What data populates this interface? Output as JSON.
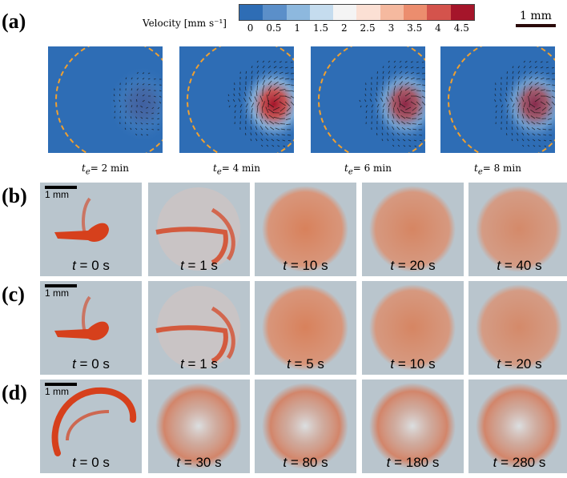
{
  "panels": {
    "a": "(a)",
    "b": "(b)",
    "c": "(c)",
    "d": "(d)"
  },
  "colorbar": {
    "title": "Velocity [mm s⁻¹]",
    "ticks": [
      "0",
      "0.5",
      "1",
      "1.5",
      "2",
      "2.5",
      "3",
      "3.5",
      "4",
      "4.5"
    ],
    "colors": [
      "#2e6db5",
      "#5b8fc9",
      "#8db8de",
      "#c5dcee",
      "#f4f4f4",
      "#fbe0d4",
      "#f5b99f",
      "#ec8d6e",
      "#d4534c",
      "#a5152a"
    ]
  },
  "scale_bar_top": "1 mm",
  "piv_times": [
    {
      "prefix": "t",
      "sub": "e",
      "rest": "= 2 min",
      "intensity": 0.15
    },
    {
      "prefix": "t",
      "sub": "e",
      "rest": "= 4 min",
      "intensity": 1.0
    },
    {
      "prefix": "t",
      "sub": "e",
      "rest": "= 6 min",
      "intensity": 0.8
    },
    {
      "prefix": "t",
      "sub": "e",
      "rest": "= 8 min",
      "intensity": 0.75
    }
  ],
  "scale_bar_row": "1 mm",
  "rows": [
    {
      "id": "b",
      "times": [
        "0",
        "1",
        "10",
        "20",
        "40"
      ],
      "unit": "s"
    },
    {
      "id": "c",
      "times": [
        "0",
        "1",
        "5",
        "10",
        "20"
      ],
      "unit": "s"
    },
    {
      "id": "d",
      "times": [
        "0",
        "30",
        "80",
        "180",
        "280"
      ],
      "unit": "s"
    }
  ],
  "time_symbol": "t",
  "colors": {
    "piv_background": "#2e6db5",
    "dashed_circle": "#f0a030",
    "dye": "#d6401c",
    "photo_background": "#b9c5cd"
  }
}
